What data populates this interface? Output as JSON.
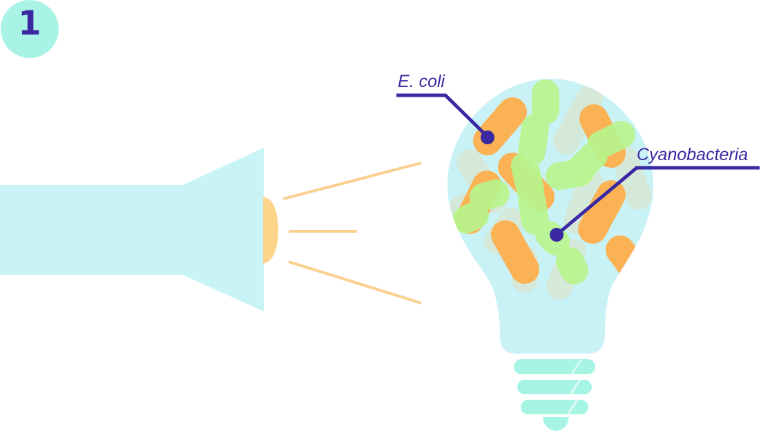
{
  "step": {
    "number": "1"
  },
  "labels": {
    "ecoli": "E. coli",
    "cyanobacteria": "Cyanobacteria"
  },
  "colors": {
    "badge": "#a9f3e6",
    "step_text": "#3a29a3",
    "flashlight": "#c8f4f7",
    "lens": "#fdd58a",
    "beam": "#fbcf8d",
    "bulb_glass": "#c9f2f7",
    "bulb_base": "#a6f4e4",
    "ecoli_cell": "#fbb255",
    "cyano_cell": "#b8f58e",
    "faded_cell": "#d8e8d6",
    "leader_line": "#3a29a3"
  },
  "icons": {
    "flashlight": "flashlight-icon",
    "bulb": "light-bulb-icon"
  }
}
